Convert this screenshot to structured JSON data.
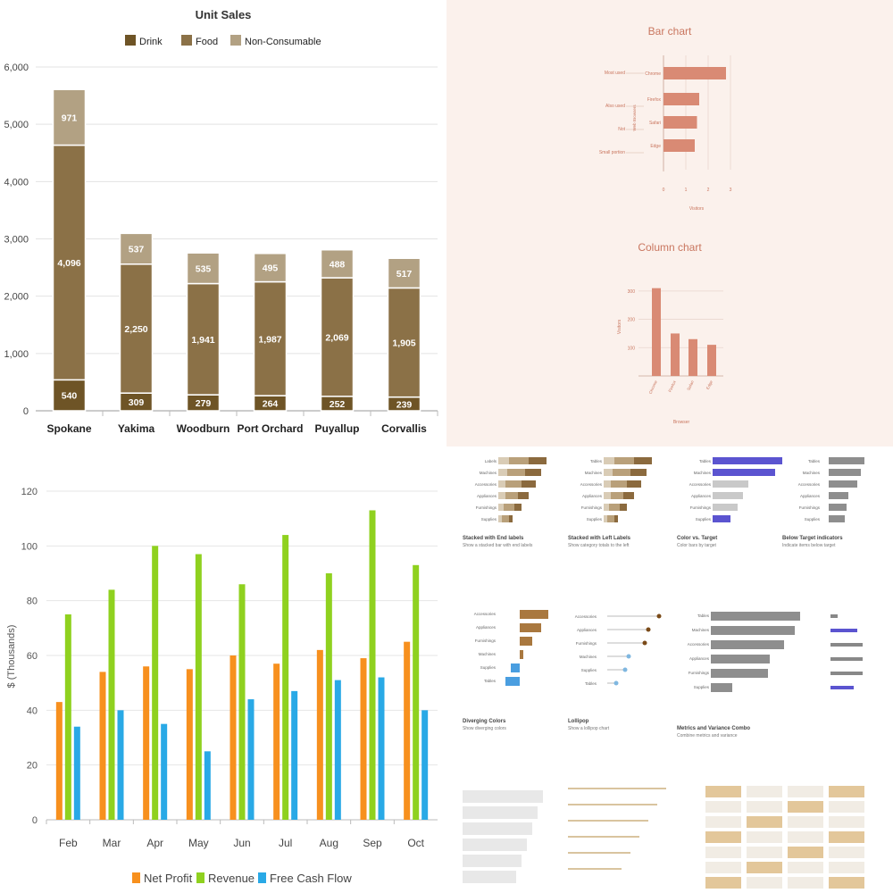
{
  "colors": {
    "drink": "#6e5426",
    "food": "#8b7147",
    "nonconsumable": "#b2a183",
    "net_profit": "#f7901e",
    "revenue": "#8fd11f",
    "free_cash_flow": "#29a9e6",
    "terracotta": "#d98a74",
    "terracotta_text": "#c9765f",
    "gallery_bar_dark": "#8b6a3e",
    "gallery_bar_mid": "#b9a07a",
    "gallery_bar_light": "#d9ccb6",
    "gallery_blue": "#5b54d0",
    "gallery_gray": "#8e8e8e",
    "gallery_tan": "#e3c79a"
  },
  "chart_data": [
    {
      "type": "bar",
      "stacked": true,
      "title": "Unit Sales",
      "legend_position": "top",
      "categories": [
        "Spokane",
        "Yakima",
        "Woodburn",
        "Port Orchard",
        "Puyallup",
        "Corvallis"
      ],
      "series": [
        {
          "name": "Drink",
          "values": [
            540,
            309,
            279,
            264,
            252,
            239
          ]
        },
        {
          "name": "Food",
          "values": [
            4096,
            2250,
            1941,
            1987,
            2069,
            1905
          ]
        },
        {
          "name": "Non-Consumable",
          "values": [
            971,
            537,
            535,
            495,
            488,
            517
          ]
        }
      ],
      "data_labels": {
        "Drink": [
          "540",
          "309",
          "279",
          "264",
          "252",
          "239"
        ],
        "Food": [
          "4,096",
          "2,250",
          "1,941",
          "1,987",
          "2,069",
          "1,905"
        ],
        "Non-Consumable": [
          "971",
          "537",
          "535",
          "495",
          "488",
          "517"
        ]
      },
      "y_ticks": [
        "0",
        "1,000",
        "2,000",
        "3,000",
        "4,000",
        "5,000",
        "6,000"
      ],
      "ylim": [
        0,
        6000
      ],
      "grid": true
    },
    {
      "type": "bar",
      "orientation": "horizontal",
      "title": "Bar chart",
      "categories": [
        "Chrome",
        "Firefox",
        "Safari",
        "Edge"
      ],
      "values": [
        2.8,
        1.6,
        1.5,
        1.4
      ],
      "annotations": [
        "Most used",
        "Also used",
        "Not",
        "Small portion"
      ],
      "group_label": "Web Browsers",
      "xlabel": "Visitors",
      "x_ticks": [
        "0",
        "1",
        "2",
        "3"
      ],
      "xlim": [
        0,
        3
      ],
      "grid": true
    },
    {
      "type": "bar",
      "title": "Column chart",
      "categories": [
        "Chrome",
        "Firefox",
        "Safari",
        "Edge"
      ],
      "values": [
        310,
        150,
        130,
        110
      ],
      "xlabel": "Browser",
      "ylabel": "Visitors",
      "y_ticks": [
        "100",
        "200",
        "300"
      ],
      "ylim": [
        0,
        350
      ],
      "grid": true
    },
    {
      "type": "bar",
      "title": "",
      "categories": [
        "Feb",
        "Mar",
        "Apr",
        "May",
        "Jun",
        "Jul",
        "Aug",
        "Sep",
        "Oct"
      ],
      "series": [
        {
          "name": "Net Profit",
          "values": [
            43,
            54,
            56,
            55,
            60,
            57,
            62,
            59,
            65
          ]
        },
        {
          "name": "Revenue",
          "values": [
            75,
            84,
            100,
            97,
            86,
            104,
            90,
            113,
            93
          ]
        },
        {
          "name": "Free Cash Flow",
          "values": [
            34,
            40,
            35,
            25,
            44,
            47,
            51,
            52,
            40
          ]
        }
      ],
      "ylabel": "$ (Thousands)",
      "y_ticks": [
        "0",
        "20",
        "40",
        "60",
        "80",
        "100",
        "120"
      ],
      "ylim": [
        0,
        120
      ],
      "legend_position": "bottom",
      "grid": true
    }
  ],
  "gallery": {
    "row1": [
      {
        "title": "Stacked with End labels",
        "desc": "Show a stacked bar with end labels",
        "labels": [
          "Labels",
          "Machines",
          "Accessories",
          "Appliances",
          "Furnishings",
          "Supplies"
        ]
      },
      {
        "title": "Stacked with Left Labels",
        "desc": "Show category totals to the left",
        "labels": [
          "Tables",
          "Machines",
          "Accessories",
          "Appliances",
          "Furnishings",
          "Supplies"
        ]
      },
      {
        "title": "Color vs. Target",
        "desc": "Color bars by target",
        "labels": [
          "Tables",
          "Machines",
          "Accessories",
          "Appliances",
          "Furnishings",
          "Supplies"
        ]
      },
      {
        "title": "Below Target indicators",
        "desc": "Indicate items below target",
        "labels": [
          "Tables",
          "Machines",
          "Accessories",
          "Appliances",
          "Furnishings",
          "Supplies"
        ]
      }
    ],
    "row2": [
      {
        "title": "Diverging Colors",
        "desc": "Show diverging colors",
        "labels": [
          "Accessories",
          "Appliances",
          "Furnishings",
          "Machines",
          "Supplies",
          "Tables"
        ]
      },
      {
        "title": "Lollipop",
        "desc": "Show a lollipop chart",
        "labels": [
          "Accessories",
          "Appliances",
          "Furnishings",
          "Machines",
          "Supplies",
          "Tables"
        ]
      },
      {
        "title": "Metrics and Variance Combo",
        "desc": "Combine metrics and variance",
        "labels": [
          "Tables",
          "Machines",
          "Accessories",
          "Appliances",
          "Furnishings",
          "Supplies"
        ]
      }
    ]
  }
}
